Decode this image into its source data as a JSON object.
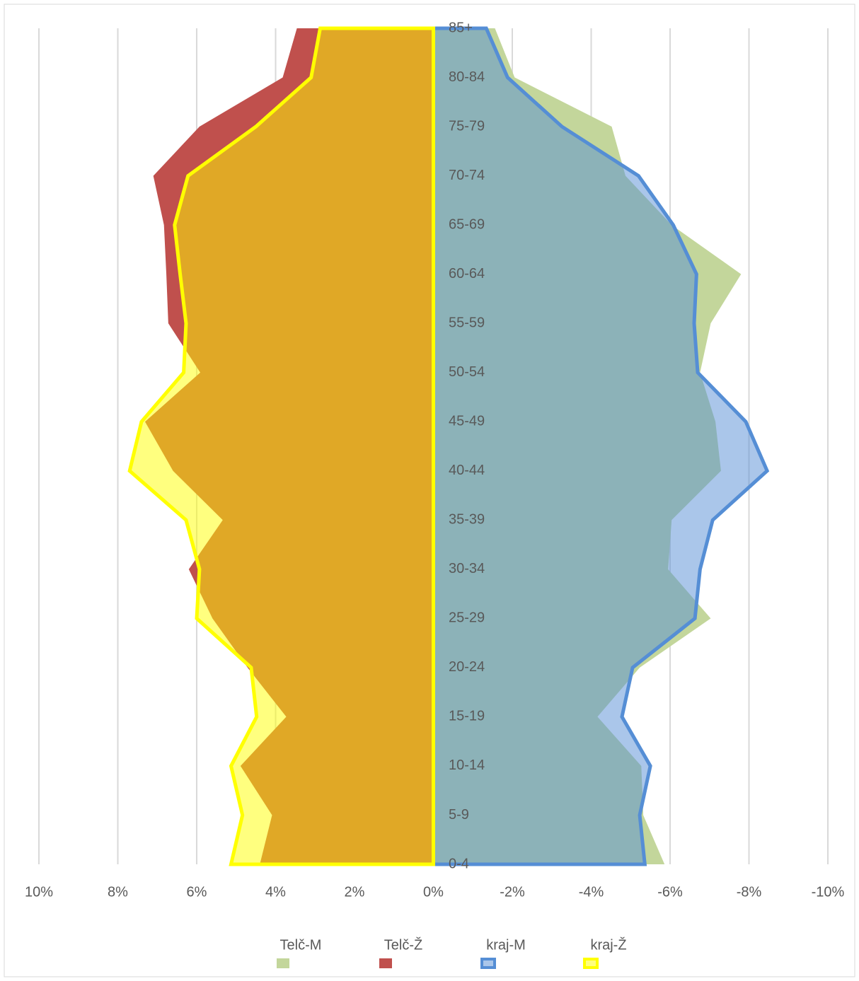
{
  "chart_data": {
    "type": "pyramid",
    "categories": [
      "0-4",
      "5-9",
      "10-14",
      "15-19",
      "20-24",
      "25-29",
      "30-34",
      "35-39",
      "40-44",
      "45-49",
      "50-54",
      "55-59",
      "60-64",
      "65-69",
      "70-74",
      "75-79",
      "80-84",
      "85+"
    ],
    "series": [
      {
        "name": "Telč-M",
        "color": "#c3d69b",
        "style": "area",
        "values": [
          -5.86,
          -5.32,
          -5.27,
          -4.16,
          -5.23,
          -7.03,
          -5.95,
          -6.04,
          -7.29,
          -7.15,
          -6.76,
          -7.03,
          -7.8,
          -6.04,
          -4.87,
          -4.52,
          -2.06,
          -1.56
        ]
      },
      {
        "name": "Telč-Ž",
        "color": "#c0504d",
        "style": "area",
        "values": [
          4.4,
          4.09,
          4.89,
          3.73,
          4.71,
          5.6,
          6.2,
          5.34,
          6.6,
          7.31,
          5.91,
          6.72,
          6.77,
          6.83,
          7.1,
          5.93,
          3.82,
          3.46
        ]
      },
      {
        "name": "kraj-M",
        "color": "#558ed5",
        "style": "outline",
        "values": [
          -5.36,
          -5.23,
          -5.5,
          -4.78,
          -5.05,
          -6.63,
          -6.76,
          -7.08,
          -8.46,
          -7.92,
          -6.7,
          -6.61,
          -6.67,
          -6.08,
          -5.2,
          -3.26,
          -1.88,
          -1.34
        ]
      },
      {
        "name": "kraj-Ž",
        "color": "#ffff00",
        "style": "outline",
        "values": [
          5.13,
          4.84,
          5.13,
          4.48,
          4.62,
          6.0,
          5.93,
          6.27,
          7.7,
          7.4,
          6.33,
          6.27,
          6.42,
          6.56,
          6.22,
          4.5,
          3.1,
          2.87
        ]
      }
    ],
    "xlim": [
      10,
      -10
    ],
    "xticks": [
      {
        "value": 10,
        "label": "10%"
      },
      {
        "value": 8,
        "label": "8%"
      },
      {
        "value": 6,
        "label": "6%"
      },
      {
        "value": 4,
        "label": "4%"
      },
      {
        "value": 2,
        "label": "2%"
      },
      {
        "value": 0,
        "label": "0%"
      },
      {
        "value": -2,
        "label": "-2%"
      },
      {
        "value": -4,
        "label": "-4%"
      },
      {
        "value": -6,
        "label": "-6%"
      },
      {
        "value": -8,
        "label": "-8%"
      },
      {
        "value": -10,
        "label": "-10%"
      }
    ],
    "grid": true,
    "legend": "bottom"
  }
}
